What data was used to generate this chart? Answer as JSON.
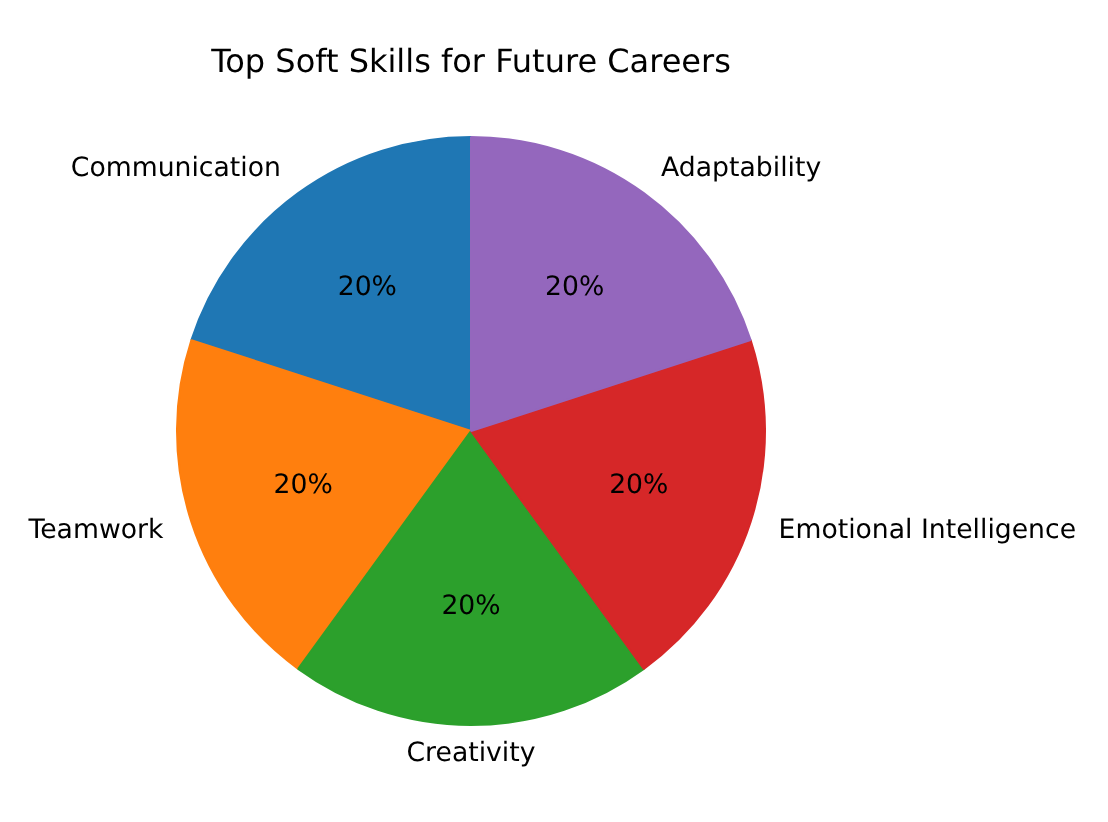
{
  "chart_data": {
    "type": "pie",
    "title": "Top Soft Skills for Future Careers",
    "categories": [
      "Communication",
      "Teamwork",
      "Creativity",
      "Emotional Intelligence",
      "Adaptability"
    ],
    "values": [
      20,
      20,
      20,
      20,
      20
    ],
    "colors": [
      "#1f77b4",
      "#ff7f0e",
      "#2ca02c",
      "#d62728",
      "#9467bd"
    ],
    "value_labels": [
      "20%",
      "20%",
      "20%",
      "20%",
      "20%"
    ]
  }
}
